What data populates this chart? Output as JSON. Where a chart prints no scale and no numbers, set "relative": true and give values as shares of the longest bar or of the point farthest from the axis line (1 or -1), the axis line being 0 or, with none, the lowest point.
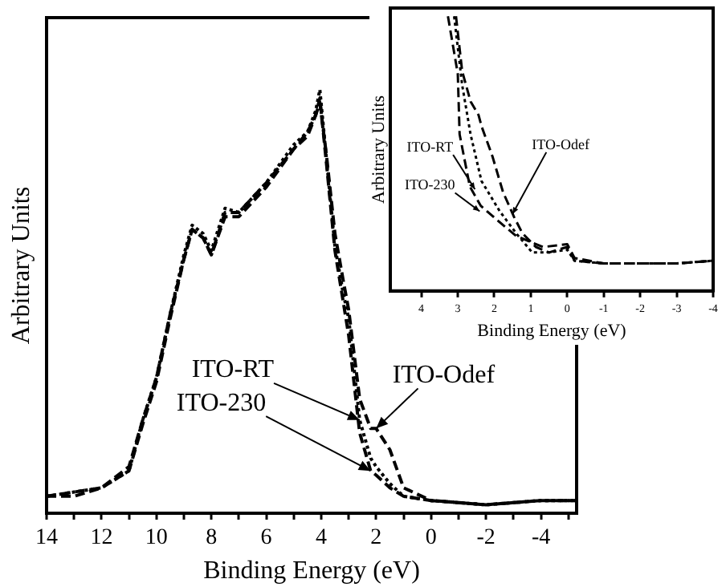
{
  "chart_data": [
    {
      "type": "line",
      "xlabel": "Binding Energy (eV)",
      "ylabel": "Arbitrary Units",
      "relative": true,
      "xlim": [
        14,
        -5.3
      ],
      "xticks": [
        14,
        {
          "value": 13,
          "label": null
        },
        12,
        {
          "value": 11,
          "label": null
        },
        10,
        {
          "value": 9,
          "label": null
        },
        8,
        {
          "value": 7,
          "label": null
        },
        6,
        {
          "value": 5,
          "label": null
        },
        4,
        {
          "value": 3,
          "label": null
        },
        2,
        {
          "value": 1,
          "label": null
        },
        0,
        {
          "value": -1,
          "label": null
        },
        -2,
        {
          "value": -3,
          "label": null
        },
        -4,
        {
          "value": -5,
          "label": null
        }
      ],
      "series": [
        {
          "color": "#000000",
          "line_style": "dotted",
          "x": [
            14,
            13,
            12,
            11,
            10.5,
            10,
            9.5,
            9,
            8.7,
            8.3,
            8,
            7.5,
            7,
            6,
            5,
            4.5,
            4.2,
            4.05,
            3.8,
            3.5,
            3.2,
            3,
            2.6,
            2.2,
            2,
            1.5,
            1,
            0,
            -2,
            -4,
            -5.3
          ],
          "values": [
            0.04,
            0.05,
            0.06,
            0.1,
            0.22,
            0.32,
            0.47,
            0.61,
            0.68,
            0.66,
            0.62,
            0.72,
            0.71,
            0.78,
            0.87,
            0.9,
            0.95,
            1,
            0.83,
            0.63,
            0.52,
            0.46,
            0.22,
            0.13,
            0.11,
            0.07,
            0.04,
            0.03,
            0.02,
            0.03,
            0.03
          ]
        },
        {
          "color": "#000000",
          "line_style": "dashed",
          "x": [
            14,
            13,
            12,
            11,
            10.5,
            10,
            9.5,
            9,
            8.7,
            8.3,
            8,
            7.5,
            7,
            6,
            5,
            4.5,
            4.2,
            4.05,
            3.8,
            3.5,
            3.2,
            3,
            2.6,
            2.2,
            2,
            1.5,
            1,
            0,
            -2,
            -4,
            -5.3
          ],
          "values": [
            0.04,
            0.04,
            0.06,
            0.1,
            0.21,
            0.31,
            0.46,
            0.6,
            0.67,
            0.65,
            0.61,
            0.7,
            0.7,
            0.77,
            0.86,
            0.89,
            0.94,
            0.98,
            0.82,
            0.62,
            0.5,
            0.42,
            0.19,
            0.1,
            0.09,
            0.06,
            0.04,
            0.03,
            0.02,
            0.03,
            0.03
          ]
        },
        {
          "color": "#000000",
          "line_style": "dashed",
          "x": [
            14,
            13,
            12,
            11,
            10.5,
            10,
            9.5,
            9,
            8.7,
            8.3,
            8,
            7.5,
            7,
            6,
            5,
            4.5,
            4.2,
            4.05,
            3.8,
            3.5,
            3.2,
            3,
            2.6,
            2.2,
            2,
            1.5,
            1,
            0,
            -2,
            -4,
            -5.3
          ],
          "values": [
            0.04,
            0.05,
            0.06,
            0.11,
            0.22,
            0.32,
            0.47,
            0.6,
            0.67,
            0.65,
            0.61,
            0.71,
            0.71,
            0.78,
            0.86,
            0.9,
            0.94,
            0.97,
            0.84,
            0.66,
            0.55,
            0.48,
            0.27,
            0.2,
            0.2,
            0.15,
            0.06,
            0.03,
            0.02,
            0.03,
            0.03
          ]
        }
      ],
      "annotations": [
        {
          "text": "ITO-RT",
          "x": 2.6,
          "y": 0.22
        },
        {
          "text": "ITO-230",
          "x": 2.2,
          "y": 0.1
        },
        {
          "text": "ITO-Odef",
          "x": 2,
          "y": 0.2
        }
      ]
    },
    {
      "type": "line",
      "xlabel": "Binding Energy (eV)",
      "ylabel": "Arbitrary Units",
      "relative": true,
      "xlim": [
        4.85,
        -4
      ],
      "xticks": [
        4,
        3,
        2,
        1,
        0,
        -1,
        -2,
        -3,
        -4
      ],
      "series": [
        {
          "color": "#000000",
          "line_style": "dotted",
          "x": [
            3.1,
            2.88,
            2.65,
            2.35,
            1.85,
            1.4,
            0.96,
            0.5,
            0,
            -0.2,
            -1,
            -2,
            -3,
            -4
          ],
          "values": [
            1,
            0.75,
            0.57,
            0.4,
            0.29,
            0.21,
            0.14,
            0.14,
            0.15,
            0.11,
            0.1,
            0.1,
            0.1,
            0.11
          ]
        },
        {
          "color": "#000000",
          "line_style": "dashed",
          "x": [
            3.27,
            3,
            2.95,
            2.67,
            2.37,
            1.85,
            1.4,
            0.66,
            0,
            -0.2,
            -1,
            -2,
            -3,
            -4
          ],
          "values": [
            1,
            0.79,
            0.57,
            0.38,
            0.31,
            0.25,
            0.2,
            0.16,
            0.17,
            0.12,
            0.1,
            0.1,
            0.1,
            0.11
          ]
        },
        {
          "color": "#000000",
          "line_style": "dashed",
          "x": [
            3.05,
            2.88,
            2.65,
            2.43,
            2.35,
            2.05,
            1.76,
            1.46,
            1.23,
            0.86,
            0.5,
            0,
            -0.2,
            -1,
            -2,
            -3,
            -4
          ],
          "values": [
            1,
            0.8,
            0.69,
            0.64,
            0.6,
            0.49,
            0.36,
            0.27,
            0.21,
            0.16,
            0.14,
            0.16,
            0.11,
            0.1,
            0.1,
            0.1,
            0.11
          ]
        }
      ],
      "annotations": [
        {
          "text": "ITO-RT",
          "x": 2.53,
          "y": 0.37
        },
        {
          "text": "ITO-230",
          "x": 2.4,
          "y": 0.29
        },
        {
          "text": "ITO-Odef",
          "x": 1.5,
          "y": 0.28
        }
      ]
    }
  ]
}
